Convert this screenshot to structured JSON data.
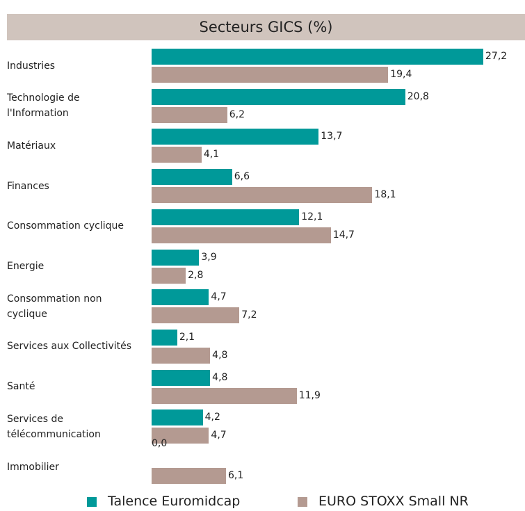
{
  "chart_data": {
    "type": "bar",
    "orientation": "horizontal",
    "title": "Secteurs GICS (%)",
    "categories": [
      "Industries",
      "Technologie de\nl'Information",
      "Matériaux",
      "Finances",
      "Consommation cyclique",
      "Energie",
      "Consommation non\ncyclique",
      "Services aux Collectivités",
      "Santé",
      "Services de\ntélécommunication",
      "Immobilier"
    ],
    "series": [
      {
        "name": "Talence Euromidcap",
        "color": "#009999",
        "values": [
          27.2,
          20.8,
          13.7,
          6.6,
          12.1,
          3.9,
          4.7,
          2.1,
          4.8,
          4.2,
          0.0
        ],
        "value_labels": [
          "27,2",
          "20,8",
          "13,7",
          "6,6",
          "12,1",
          "3,9",
          "4,7",
          "2,1",
          "4,8",
          "4,2",
          "0,0"
        ]
      },
      {
        "name": "EURO STOXX Small NR",
        "color": "#b49a91",
        "values": [
          19.4,
          6.2,
          4.1,
          18.1,
          14.7,
          2.8,
          7.2,
          4.8,
          11.9,
          4.7,
          6.1
        ],
        "value_labels": [
          "19,4",
          "6,2",
          "4,1",
          "18,1",
          "14,7",
          "2,8",
          "7,2",
          "4,8",
          "11,9",
          "4,7",
          "6,1"
        ]
      }
    ]
  }
}
